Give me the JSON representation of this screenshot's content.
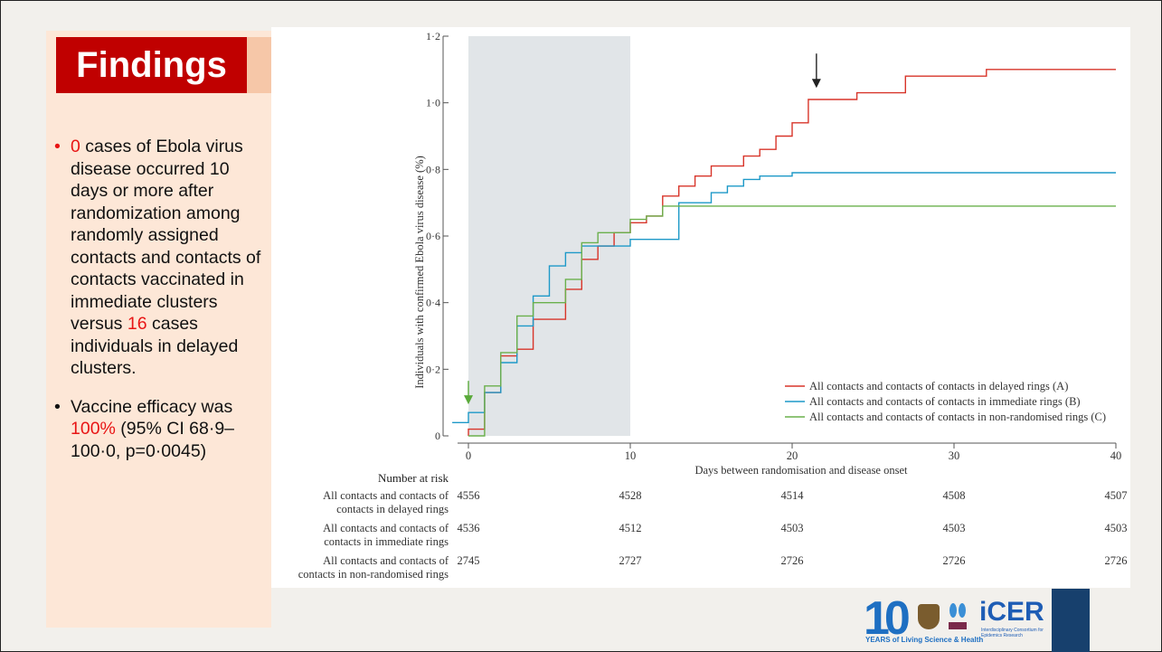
{
  "slide": {
    "title": "Findings",
    "bullets": [
      {
        "parts": [
          {
            "text": "0",
            "highlight": true
          },
          {
            "text": " cases of Ebola virus disease occurred 10 days or more after randomization among randomly assigned contacts and contacts of contacts vaccinated in immediate clusters versus ",
            "highlight": false
          },
          {
            "text": "16",
            "highlight": true
          },
          {
            "text": " cases individuals in delayed clusters.",
            "highlight": false
          }
        ]
      },
      {
        "parts": [
          {
            "text": " Vaccine efficacy was ",
            "highlight": false
          },
          {
            "text": "100%",
            "highlight": true
          },
          {
            "text": " (95% CI 68·9–100·0, p=0·0045)",
            "highlight": false
          }
        ]
      }
    ],
    "colors": {
      "title_bg": "#c00000",
      "panel_bg": "#fde7d7",
      "highlight": "#e81515",
      "corner_block": "#17406d"
    }
  },
  "logos": {
    "ten_years": "10",
    "ten_years_caption": "YEARS of Living Science & Health",
    "icer": "iCER",
    "icer_caption": "Interdisciplinary Consortium for Epidemics Research"
  },
  "chart_data": {
    "type": "line",
    "step": true,
    "xlabel": "Days between randomisation and disease onset",
    "ylabel": "Individuals with confirmed Ebola virus disease (%)",
    "xlim": [
      0,
      40
    ],
    "ylim": [
      0,
      1.2
    ],
    "x_ticks": [
      "0",
      "10",
      "20",
      "30",
      "40"
    ],
    "y_ticks": [
      "0",
      "0·2",
      "0·4",
      "0·6",
      "0·8",
      "1·0",
      "1·2"
    ],
    "shaded_region": [
      0,
      10
    ],
    "legend_position": "bottom-right",
    "markers": [
      {
        "kind": "arrow-down",
        "x": 21.5,
        "y": 1.05,
        "color": "#222222"
      },
      {
        "kind": "arrow-down",
        "x": 0,
        "y": 0.1,
        "color": "#5aaa3a"
      }
    ],
    "series": [
      {
        "name": "All contacts and contacts of contacts in delayed rings (A)",
        "color": "#d8352a",
        "points": [
          [
            0,
            0
          ],
          [
            0,
            0.02
          ],
          [
            1,
            0.02
          ],
          [
            1,
            0.13
          ],
          [
            2,
            0.13
          ],
          [
            2,
            0.24
          ],
          [
            3,
            0.24
          ],
          [
            3,
            0.26
          ],
          [
            4,
            0.26
          ],
          [
            4,
            0.35
          ],
          [
            6,
            0.35
          ],
          [
            6,
            0.44
          ],
          [
            7,
            0.44
          ],
          [
            7,
            0.53
          ],
          [
            8,
            0.53
          ],
          [
            8,
            0.57
          ],
          [
            9,
            0.57
          ],
          [
            9,
            0.61
          ],
          [
            10,
            0.61
          ],
          [
            10,
            0.64
          ],
          [
            11,
            0.64
          ],
          [
            11,
            0.66
          ],
          [
            12,
            0.66
          ],
          [
            12,
            0.72
          ],
          [
            13,
            0.72
          ],
          [
            13,
            0.75
          ],
          [
            14,
            0.75
          ],
          [
            14,
            0.78
          ],
          [
            15,
            0.78
          ],
          [
            15,
            0.81
          ],
          [
            17,
            0.81
          ],
          [
            17,
            0.84
          ],
          [
            18,
            0.84
          ],
          [
            18,
            0.86
          ],
          [
            19,
            0.86
          ],
          [
            19,
            0.9
          ],
          [
            20,
            0.9
          ],
          [
            20,
            0.94
          ],
          [
            21,
            0.94
          ],
          [
            21,
            1.01
          ],
          [
            24,
            1.01
          ],
          [
            24,
            1.03
          ],
          [
            27,
            1.03
          ],
          [
            27,
            1.08
          ],
          [
            32,
            1.08
          ],
          [
            32,
            1.1
          ],
          [
            40,
            1.1
          ]
        ]
      },
      {
        "name": "All contacts and contacts of contacts in immediate rings (B)",
        "color": "#1d99c8",
        "points": [
          [
            -1,
            0.04
          ],
          [
            0,
            0.04
          ],
          [
            0,
            0.07
          ],
          [
            1,
            0.07
          ],
          [
            1,
            0.13
          ],
          [
            2,
            0.13
          ],
          [
            2,
            0.22
          ],
          [
            3,
            0.22
          ],
          [
            3,
            0.33
          ],
          [
            4,
            0.33
          ],
          [
            4,
            0.42
          ],
          [
            5,
            0.42
          ],
          [
            5,
            0.51
          ],
          [
            6,
            0.51
          ],
          [
            6,
            0.55
          ],
          [
            7,
            0.55
          ],
          [
            7,
            0.57
          ],
          [
            10,
            0.57
          ],
          [
            10,
            0.59
          ],
          [
            13,
            0.59
          ],
          [
            13,
            0.7
          ],
          [
            15,
            0.7
          ],
          [
            15,
            0.73
          ],
          [
            16,
            0.73
          ],
          [
            16,
            0.75
          ],
          [
            17,
            0.75
          ],
          [
            17,
            0.77
          ],
          [
            18,
            0.77
          ],
          [
            18,
            0.78
          ],
          [
            20,
            0.78
          ],
          [
            20,
            0.79
          ],
          [
            40,
            0.79
          ]
        ]
      },
      {
        "name": "All contacts and contacts of contacts in non-randomised rings (C)",
        "color": "#6ab04c",
        "points": [
          [
            0,
            0
          ],
          [
            1,
            0
          ],
          [
            1,
            0.15
          ],
          [
            2,
            0.15
          ],
          [
            2,
            0.25
          ],
          [
            3,
            0.25
          ],
          [
            3,
            0.36
          ],
          [
            4,
            0.36
          ],
          [
            4,
            0.4
          ],
          [
            6,
            0.4
          ],
          [
            6,
            0.47
          ],
          [
            7,
            0.47
          ],
          [
            7,
            0.58
          ],
          [
            8,
            0.58
          ],
          [
            8,
            0.61
          ],
          [
            10,
            0.61
          ],
          [
            10,
            0.65
          ],
          [
            11,
            0.65
          ],
          [
            11,
            0.66
          ],
          [
            12,
            0.66
          ],
          [
            12,
            0.69
          ],
          [
            40,
            0.69
          ]
        ]
      }
    ],
    "number_at_risk": {
      "header": "Number at risk",
      "rows": [
        {
          "label": [
            "All contacts and contacts of",
            "contacts in delayed rings"
          ],
          "values": [
            "4556",
            "4528",
            "4514",
            "4508",
            "4507"
          ]
        },
        {
          "label": [
            "All contacts and contacts of",
            "contacts in immediate rings"
          ],
          "values": [
            "4536",
            "4512",
            "4503",
            "4503",
            "4503"
          ]
        },
        {
          "label": [
            "All contacts and contacts of",
            "contacts in non-randomised rings"
          ],
          "values": [
            "2745",
            "2727",
            "2726",
            "2726",
            "2726"
          ]
        }
      ]
    }
  }
}
